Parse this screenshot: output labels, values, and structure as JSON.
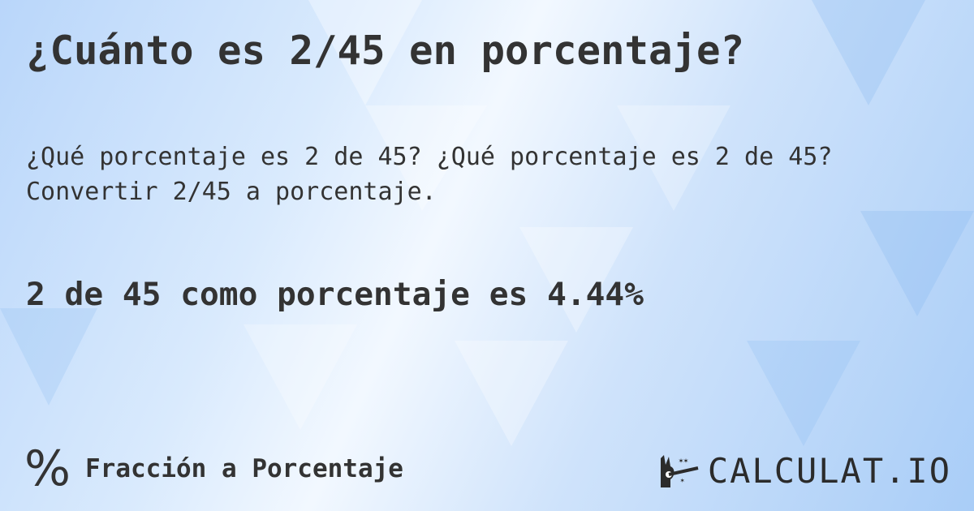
{
  "title": "¿Cuánto es 2/45 en porcentaje?",
  "subtitle_line1": "¿Qué porcentaje es 2 de 45? ¿Qué porcentaje es 2 de 45?",
  "subtitle_line2": "Convertir 2/45 a porcentaje.",
  "result": "2 de 45 como porcentaje es 4.44%",
  "footer": {
    "icon": "percent-icon",
    "icon_glyph": "%",
    "label": "Fracción a Porcentaje"
  },
  "logo": {
    "text": "CALCULAT.IO",
    "icon": "magic-hand-icon"
  },
  "colors": {
    "text": "#333333",
    "background_light": "#f2f8ff",
    "background_blue": "#a9cdf7"
  }
}
